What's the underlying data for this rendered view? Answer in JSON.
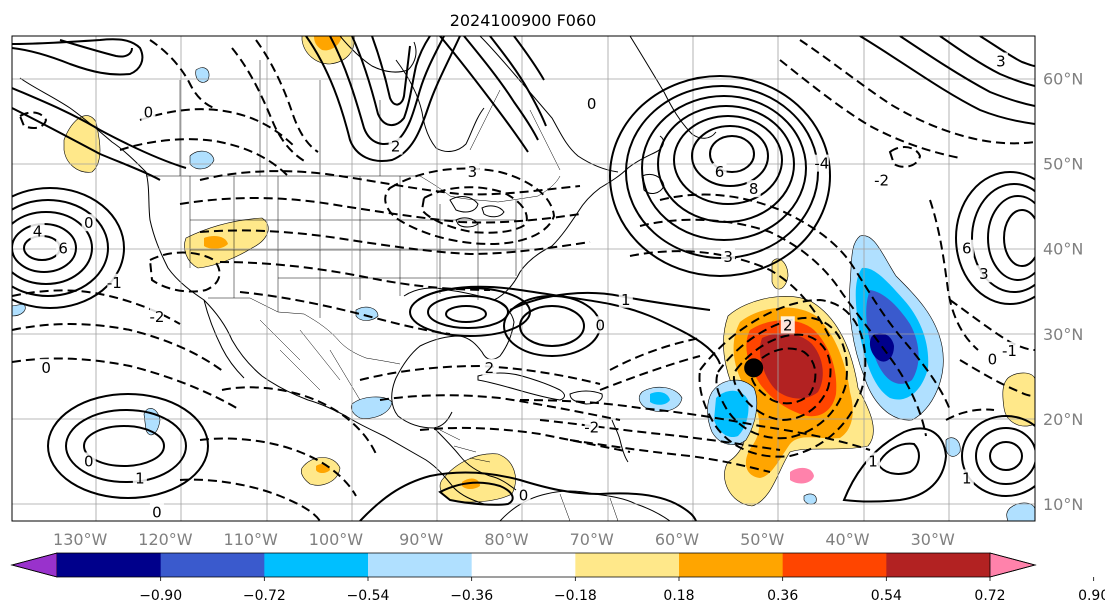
{
  "title": "2024100900 F060",
  "map": {
    "lon_labels": [
      "130°W",
      "120°W",
      "110°W",
      "100°W",
      "90°W",
      "80°W",
      "70°W",
      "60°W",
      "50°W",
      "40°W",
      "30°W"
    ],
    "lat_labels": [
      "10°N",
      "20°N",
      "30°N",
      "40°N",
      "50°N",
      "60°N"
    ],
    "lon_range": [
      -138,
      -18
    ],
    "lat_range": [
      8,
      65
    ],
    "gridlines": true,
    "storm_marker": {
      "lon": -51,
      "lat": 26
    }
  },
  "contour_labels": [
    {
      "text": "4",
      "lon": -135,
      "lat": 42
    },
    {
      "text": "6",
      "lon": -132,
      "lat": 40
    },
    {
      "text": "0",
      "lon": -129,
      "lat": 43
    },
    {
      "text": "0",
      "lon": -122,
      "lat": 56
    },
    {
      "text": "2",
      "lon": -93,
      "lat": 52
    },
    {
      "text": "3",
      "lon": -84,
      "lat": 49
    },
    {
      "text": "0",
      "lon": -70,
      "lat": 57
    },
    {
      "text": "6",
      "lon": -55,
      "lat": 49
    },
    {
      "text": "8",
      "lon": -51,
      "lat": 47
    },
    {
      "text": "3",
      "lon": -54,
      "lat": 39
    },
    {
      "text": "1",
      "lon": -66,
      "lat": 34
    },
    {
      "text": "0",
      "lon": -69,
      "lat": 31
    },
    {
      "text": "2",
      "lon": -47,
      "lat": 31
    },
    {
      "text": "-4",
      "lon": -43,
      "lat": 50
    },
    {
      "text": "-2",
      "lon": -36,
      "lat": 48
    },
    {
      "text": "6",
      "lon": -26,
      "lat": 40
    },
    {
      "text": "3",
      "lon": -24,
      "lat": 37
    },
    {
      "text": "-2",
      "lon": -121,
      "lat": 32
    },
    {
      "text": "-1",
      "lon": -126,
      "lat": 36
    },
    {
      "text": "0",
      "lon": -134,
      "lat": 26
    },
    {
      "text": "0",
      "lon": -129,
      "lat": 15
    },
    {
      "text": "1",
      "lon": -123,
      "lat": 13
    },
    {
      "text": "0",
      "lon": -121,
      "lat": 9
    },
    {
      "text": "-2",
      "lon": -70,
      "lat": 19
    },
    {
      "text": "2",
      "lon": -82,
      "lat": 26
    },
    {
      "text": "0",
      "lon": -78,
      "lat": 11
    },
    {
      "text": "1",
      "lon": -37,
      "lat": 15
    },
    {
      "text": "1",
      "lon": -26,
      "lat": 13
    },
    {
      "text": "0",
      "lon": -23,
      "lat": 27
    },
    {
      "text": "-1",
      "lon": -21,
      "lat": 28
    },
    {
      "text": "3",
      "lon": -22,
      "lat": 62
    }
  ],
  "colorbar": {
    "ticks": [
      "-0.90",
      "-0.72",
      "-0.54",
      "-0.36",
      "-0.18",
      "0.18",
      "0.36",
      "0.54",
      "0.72",
      "0.90"
    ],
    "colors": [
      "#9932cc",
      "#00008b",
      "#3a5acd",
      "#00bfff",
      "#b0e0ff",
      "#ffffff",
      "#ffe88a",
      "#ffa500",
      "#ff4500",
      "#b22222",
      "#ff82ab"
    ],
    "extend": "both"
  }
}
